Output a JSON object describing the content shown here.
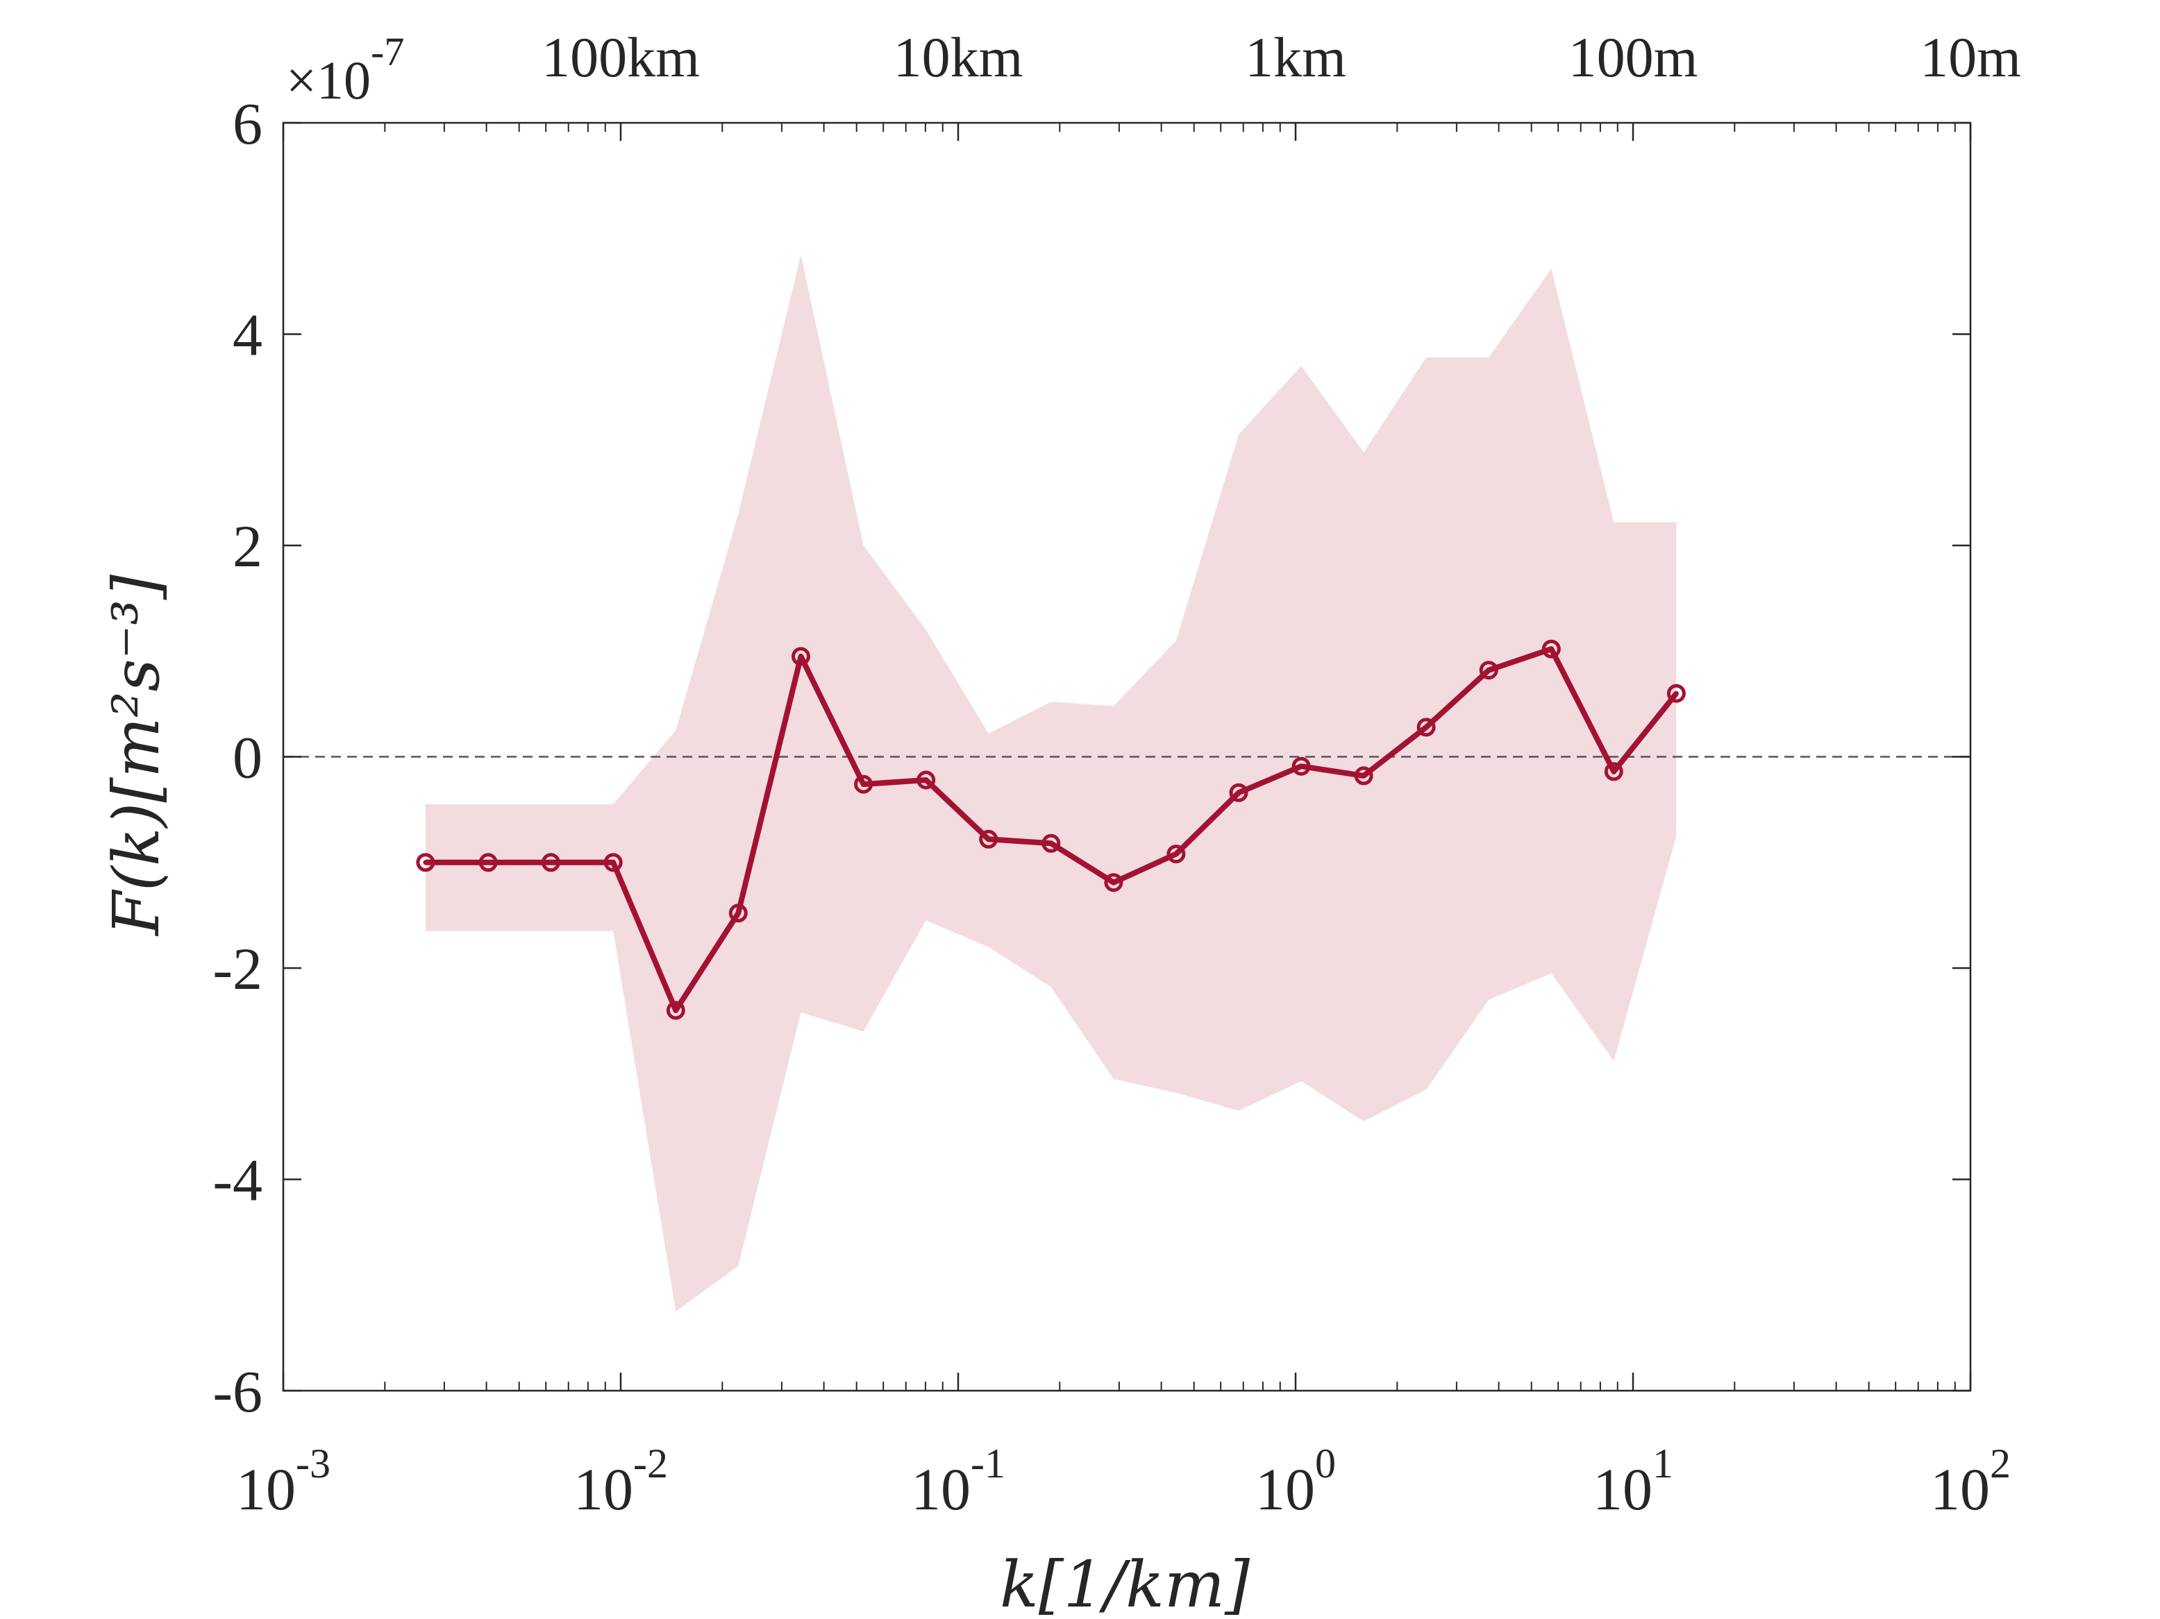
{
  "chart_data": {
    "type": "line",
    "x_scale": "log",
    "xlim": [
      0.001,
      100
    ],
    "ylim": [
      -6,
      6
    ],
    "y_multiplier": "×10",
    "y_multiplier_exponent": "-7",
    "xlabel": "k[1/km]",
    "ylabel": "F(k)[m²s⁻³]",
    "x_ticks": [
      {
        "value": 0.001,
        "base": "10",
        "exp": "-3"
      },
      {
        "value": 0.01,
        "base": "10",
        "exp": "-2"
      },
      {
        "value": 0.1,
        "base": "10",
        "exp": "-1"
      },
      {
        "value": 1,
        "base": "10",
        "exp": "0"
      },
      {
        "value": 10,
        "base": "10",
        "exp": "1"
      },
      {
        "value": 100,
        "base": "10",
        "exp": "2"
      }
    ],
    "y_ticks": [
      {
        "value": 6,
        "label": "6"
      },
      {
        "value": 4,
        "label": "4"
      },
      {
        "value": 2,
        "label": "2"
      },
      {
        "value": 0,
        "label": "0"
      },
      {
        "value": -2,
        "label": "-2"
      },
      {
        "value": -4,
        "label": "-4"
      },
      {
        "value": -6,
        "label": "-6"
      }
    ],
    "top_ticks": [
      {
        "value": 0.01,
        "label": "100km"
      },
      {
        "value": 0.1,
        "label": "10km"
      },
      {
        "value": 1,
        "label": "1km"
      },
      {
        "value": 10,
        "label": "100m"
      },
      {
        "value": 100,
        "label": "10m"
      }
    ],
    "zero_line": true,
    "series": [
      {
        "x": [
          0.00264,
          0.00405,
          0.00621,
          0.0095,
          0.01456,
          0.0223,
          0.0342,
          0.0524,
          0.0803,
          0.123,
          0.1885,
          0.2888,
          0.4425,
          0.678,
          1.039,
          1.592,
          2.438,
          3.736,
          5.725,
          8.77,
          13.44
        ],
        "values": [
          -1.0,
          -1.0,
          -1.0,
          -1.0,
          -2.4,
          -1.48,
          0.95,
          -0.26,
          -0.22,
          -0.78,
          -0.82,
          -1.19,
          -0.92,
          -0.34,
          -0.09,
          -0.18,
          0.28,
          0.82,
          1.02,
          -0.14,
          0.6
        ],
        "upper": [
          -0.45,
          -0.45,
          -0.45,
          -0.45,
          0.25,
          2.3,
          4.75,
          2.0,
          1.2,
          0.22,
          0.52,
          0.48,
          1.1,
          3.05,
          3.7,
          2.88,
          3.78,
          3.78,
          4.62,
          2.22,
          2.22
        ],
        "lower": [
          -1.65,
          -1.65,
          -1.65,
          -1.65,
          -5.25,
          -4.82,
          -2.42,
          -2.6,
          -1.55,
          -1.8,
          -2.18,
          -3.05,
          -3.18,
          -3.35,
          -3.07,
          -3.45,
          -3.15,
          -2.3,
          -2.05,
          -2.88,
          -0.75
        ],
        "color": "#a31232",
        "band_color": "#f2dce0"
      }
    ]
  }
}
